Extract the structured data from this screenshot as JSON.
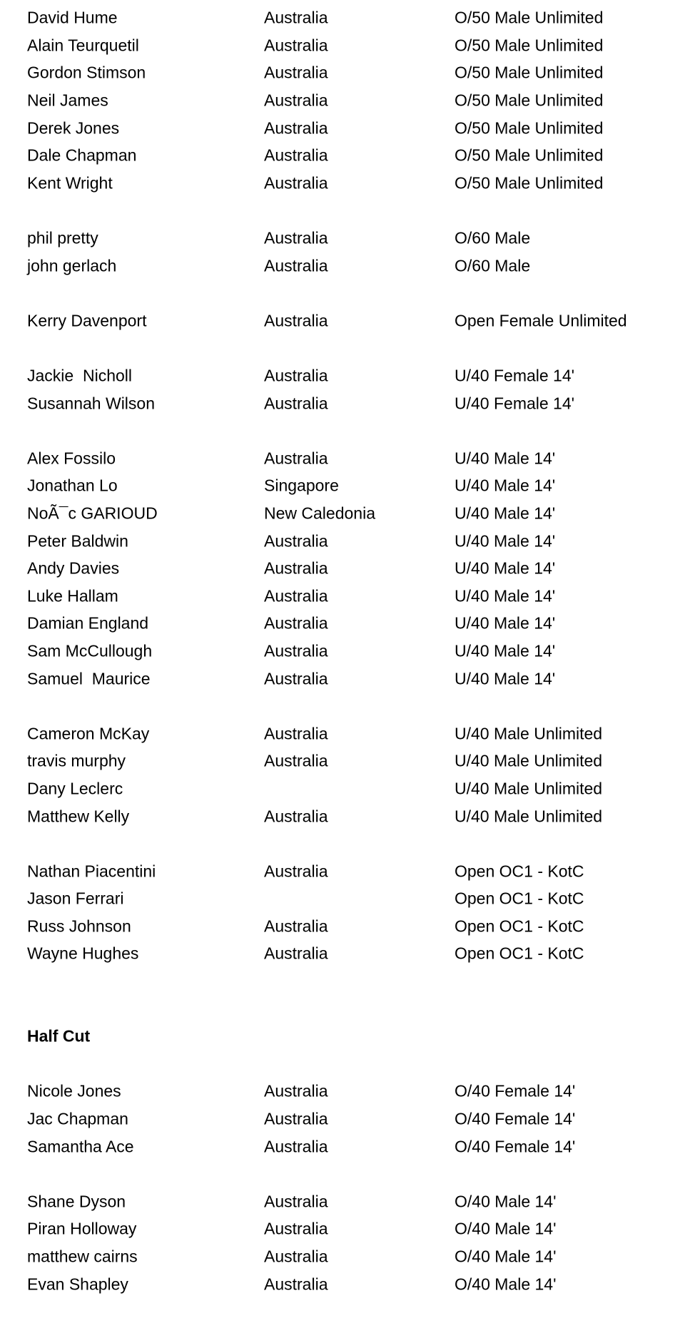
{
  "page": {
    "background_color": "#ffffff",
    "text_color": "#000000"
  },
  "table": {
    "columns": [
      "name",
      "country",
      "category"
    ],
    "rows": [
      {
        "type": "entry",
        "name": "David Hume",
        "country": "Australia",
        "category": "O/50 Male Unlimited"
      },
      {
        "type": "entry",
        "name": "Alain Teurquetil",
        "country": "Australia",
        "category": "O/50 Male Unlimited"
      },
      {
        "type": "entry",
        "name": "Gordon Stimson",
        "country": "Australia",
        "category": "O/50 Male Unlimited"
      },
      {
        "type": "entry",
        "name": "Neil James",
        "country": "Australia",
        "category": "O/50 Male Unlimited"
      },
      {
        "type": "entry",
        "name": "Derek Jones",
        "country": "Australia",
        "category": "O/50 Male Unlimited"
      },
      {
        "type": "entry",
        "name": "Dale Chapman",
        "country": "Australia",
        "category": "O/50 Male Unlimited"
      },
      {
        "type": "entry",
        "name": "Kent Wright",
        "country": "Australia",
        "category": "O/50 Male Unlimited"
      },
      {
        "type": "spacer"
      },
      {
        "type": "entry",
        "name": "phil pretty",
        "country": "Australia",
        "category": "O/60 Male"
      },
      {
        "type": "entry",
        "name": "john gerlach",
        "country": "Australia",
        "category": "O/60 Male"
      },
      {
        "type": "spacer"
      },
      {
        "type": "entry",
        "name": "Kerry Davenport",
        "country": "Australia",
        "category": "Open Female Unlimited"
      },
      {
        "type": "spacer"
      },
      {
        "type": "entry",
        "name": "Jackie  Nicholl",
        "country": "Australia",
        "category": "U/40 Female 14'"
      },
      {
        "type": "entry",
        "name": "Susannah Wilson",
        "country": "Australia",
        "category": "U/40 Female 14'"
      },
      {
        "type": "spacer"
      },
      {
        "type": "entry",
        "name": "Alex Fossilo",
        "country": "Australia",
        "category": "U/40 Male 14'"
      },
      {
        "type": "entry",
        "name": "Jonathan Lo",
        "country": "Singapore",
        "category": "U/40 Male 14'"
      },
      {
        "type": "entry",
        "name": "NoÃ¯c GARIOUD",
        "country": "New Caledonia",
        "category": "U/40 Male 14'"
      },
      {
        "type": "entry",
        "name": "Peter Baldwin",
        "country": "Australia",
        "category": "U/40 Male 14'"
      },
      {
        "type": "entry",
        "name": "Andy Davies",
        "country": "Australia",
        "category": "U/40 Male 14'"
      },
      {
        "type": "entry",
        "name": "Luke Hallam",
        "country": "Australia",
        "category": "U/40 Male 14'"
      },
      {
        "type": "entry",
        "name": "Damian England",
        "country": "Australia",
        "category": "U/40 Male 14'"
      },
      {
        "type": "entry",
        "name": "Sam McCullough",
        "country": "Australia",
        "category": "U/40 Male 14'"
      },
      {
        "type": "entry",
        "name": "Samuel  Maurice",
        "country": "Australia",
        "category": "U/40 Male 14'"
      },
      {
        "type": "spacer"
      },
      {
        "type": "entry",
        "name": "Cameron McKay",
        "country": "Australia",
        "category": "U/40 Male Unlimited"
      },
      {
        "type": "entry",
        "name": "travis murphy",
        "country": "Australia",
        "category": "U/40 Male Unlimited"
      },
      {
        "type": "entry",
        "name": "Dany Leclerc",
        "country": "",
        "category": "U/40 Male Unlimited"
      },
      {
        "type": "entry",
        "name": "Matthew Kelly",
        "country": "Australia",
        "category": "U/40 Male Unlimited"
      },
      {
        "type": "spacer"
      },
      {
        "type": "entry",
        "name": "Nathan Piacentini",
        "country": "Australia",
        "category": "Open OC1 - KotC"
      },
      {
        "type": "entry",
        "name": "Jason Ferrari",
        "country": "",
        "category": "Open OC1 - KotC"
      },
      {
        "type": "entry",
        "name": "Russ Johnson",
        "country": "Australia",
        "category": "Open OC1 - KotC"
      },
      {
        "type": "entry",
        "name": "Wayne Hughes",
        "country": "Australia",
        "category": "Open OC1 - KotC"
      },
      {
        "type": "spacer"
      },
      {
        "type": "spacer"
      },
      {
        "type": "header",
        "name": "Half Cut"
      },
      {
        "type": "spacer"
      },
      {
        "type": "entry",
        "name": "Nicole Jones",
        "country": "Australia",
        "category": "O/40 Female 14'"
      },
      {
        "type": "entry",
        "name": "Jac Chapman",
        "country": "Australia",
        "category": "O/40 Female 14'"
      },
      {
        "type": "entry",
        "name": "Samantha Ace",
        "country": "Australia",
        "category": "O/40 Female 14'"
      },
      {
        "type": "spacer"
      },
      {
        "type": "entry",
        "name": "Shane Dyson",
        "country": "Australia",
        "category": "O/40 Male 14'"
      },
      {
        "type": "entry",
        "name": "Piran Holloway",
        "country": "Australia",
        "category": "O/40 Male 14'"
      },
      {
        "type": "entry",
        "name": "matthew cairns",
        "country": "Australia",
        "category": "O/40 Male 14'"
      },
      {
        "type": "entry",
        "name": "Evan Shapley",
        "country": "Australia",
        "category": "O/40 Male 14'"
      }
    ]
  }
}
